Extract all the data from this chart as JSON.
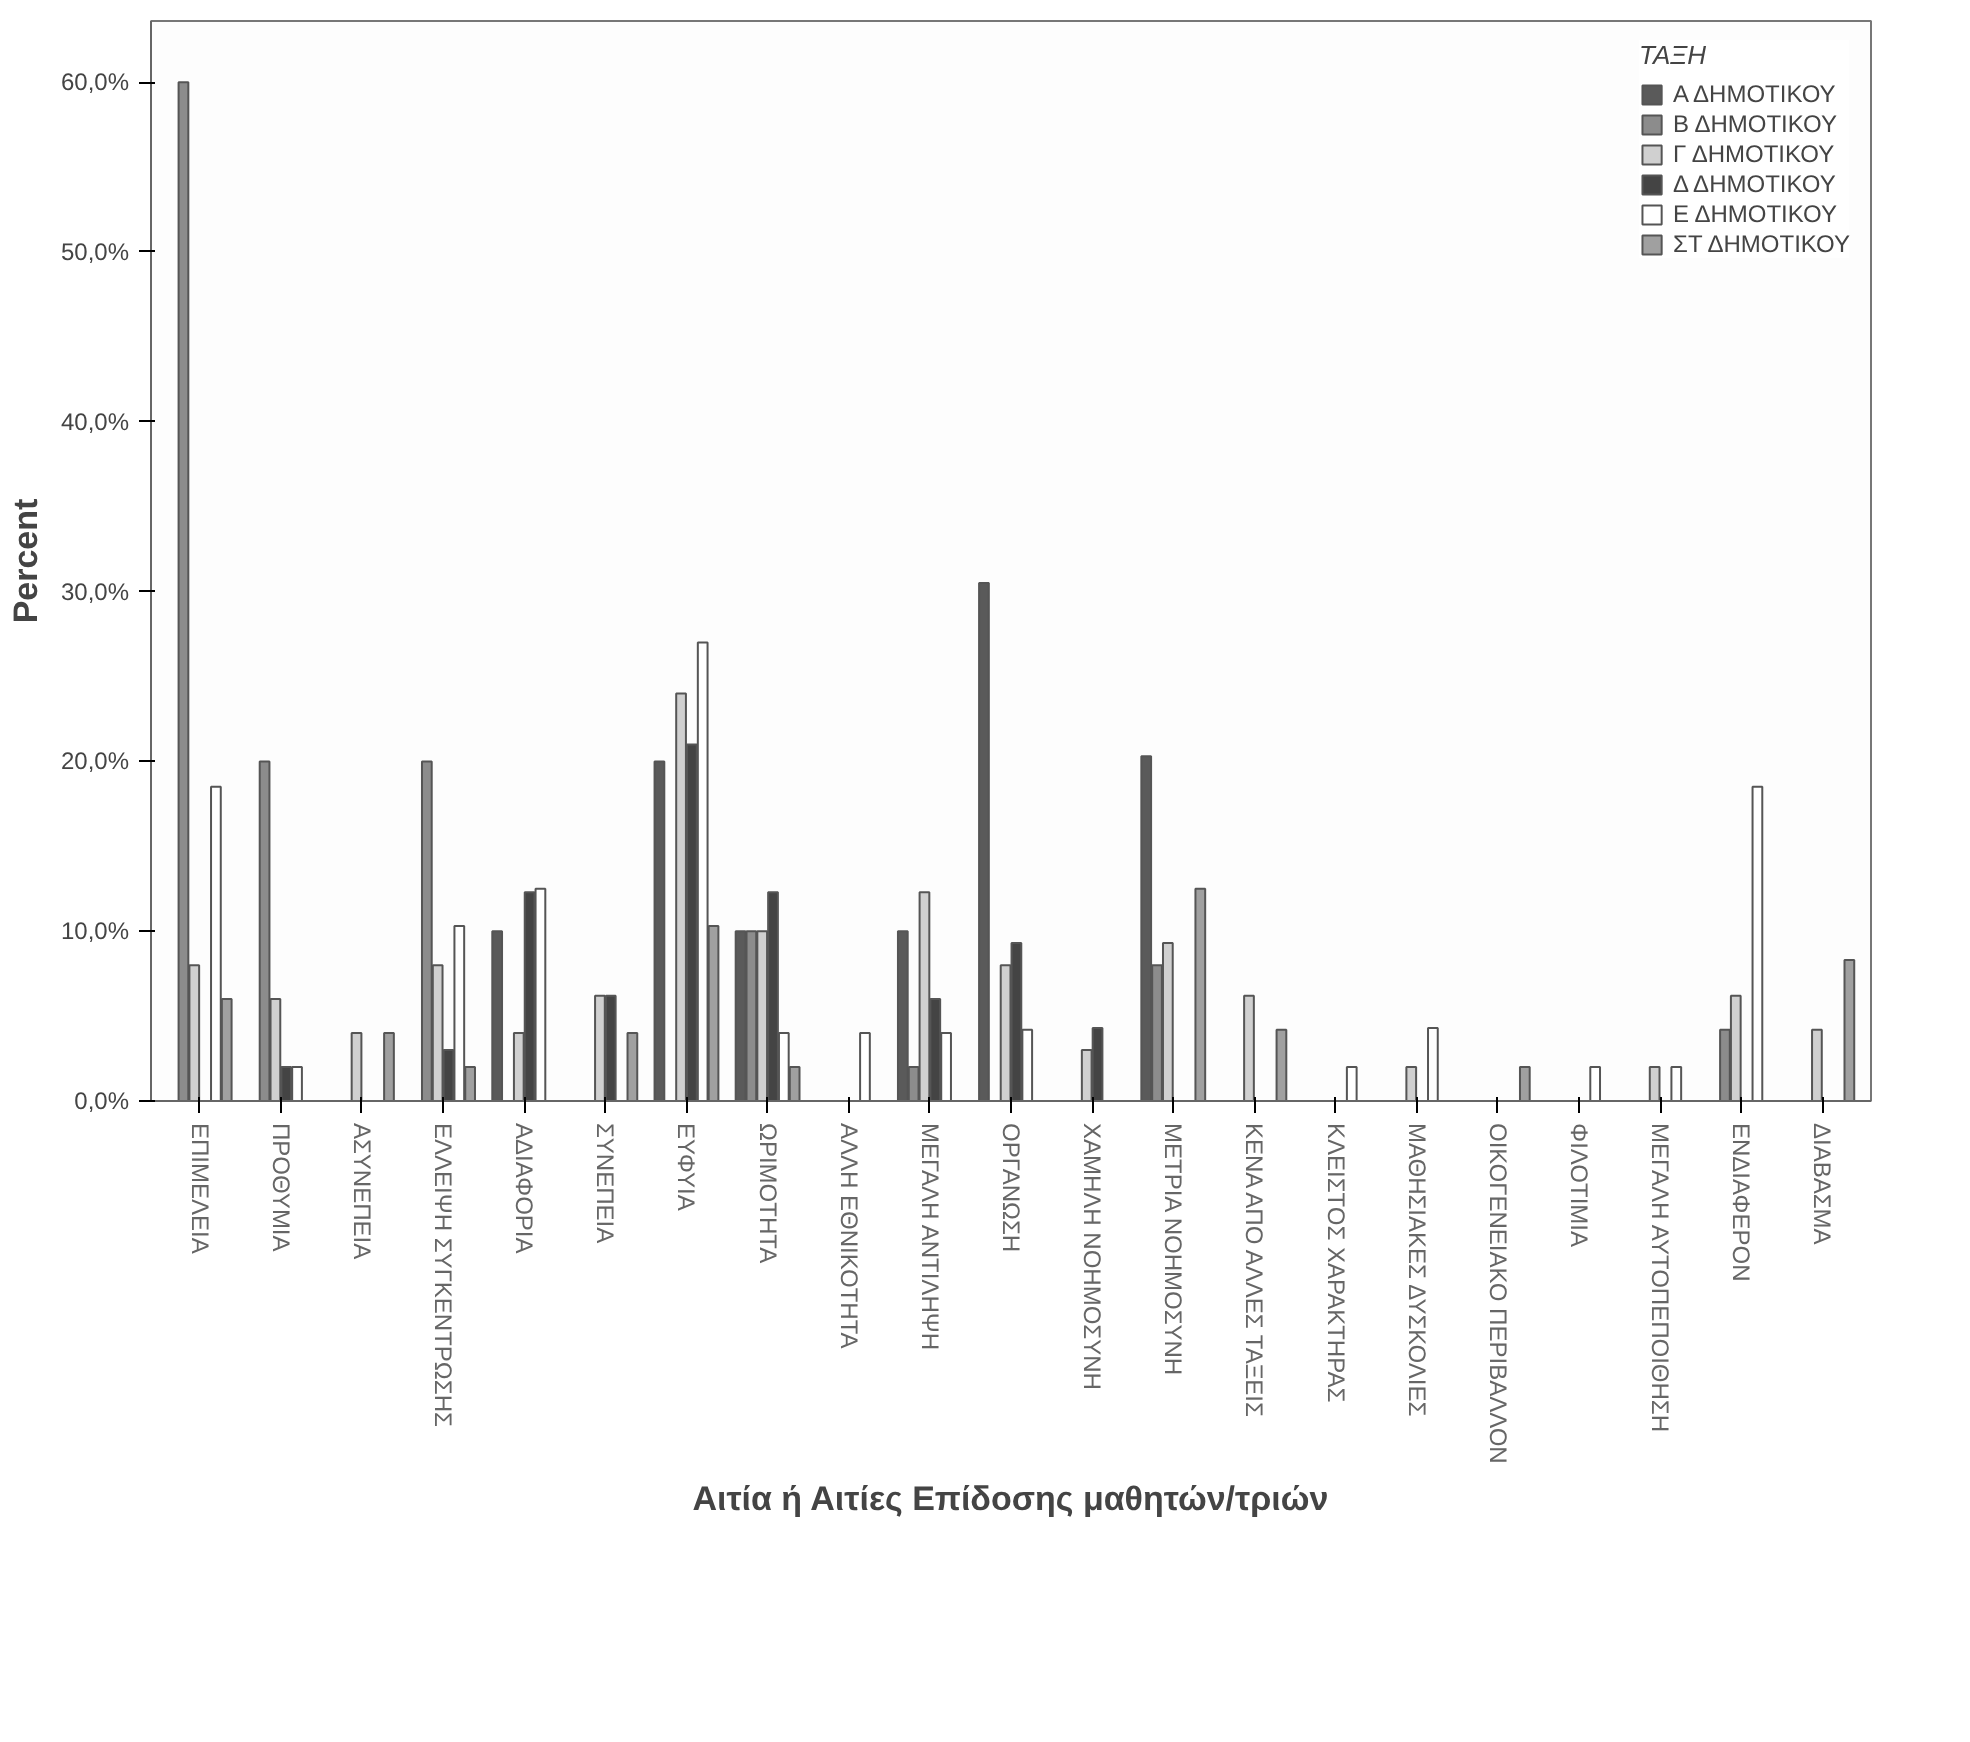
{
  "chart_data": {
    "type": "bar",
    "xlabel": "Αιτία ή Αιτίες Επίδοσης μαθητών/τριών",
    "ylabel": "Percent",
    "legend_title": "ΤΑΞΗ",
    "legend": "top right",
    "grid": false,
    "categories": [
      "ΕΠΙΜΕΛΕΙΑ",
      "ΠΡΟΘΥΜΙΑ",
      "ΑΣΥΝΕΠΕΙΑ",
      "ΕΛΛΕΙΨΗ ΣΥΓΚΕΝΤΡΩΣΗΣ",
      "ΑΔΙΑΦΟΡΙΑ",
      "ΣΥΝΕΠΕΙΑ",
      "ΕΥΦΥΙΑ",
      "ΩΡΙΜΟΤΗΤΑ",
      "ΑΛΛΗ ΕΘΝΙΚΟΤΗΤΑ",
      "ΜΕΓΑΛΗ ΑΝΤΙΛΗΨΗ",
      "ΟΡΓΑΝΩΣΗ",
      "ΧΑΜΗΛΗ ΝΟΗΜΟΣΥΝΗ",
      "ΜΕΤΡΙΑ ΝΟΗΜΟΣΥΝΗ",
      "ΚΕΝΑ ΑΠΟ ΑΛΛΕΣ ΤΑΞΕΙΣ",
      "ΚΛΕΙΣΤΟΣ ΧΑΡΑΚΤΗΡΑΣ",
      "ΜΑΘΗΣΙΑΚΕΣ ΔΥΣΚΟΛΙΕΣ",
      "ΟΙΚΟΓΕΝΕΙΑΚΟ ΠΕΡΙΒΑΛΛΟΝ",
      "ΦΙΛΟΤΙΜΙΑ",
      "ΜΕΓΑΛΗ ΑΥΤΟΠΕΠΟΙΘΗΣΗ",
      "ΕΝΔΙΑΦΕΡΟΝ",
      "ΔΙΑΒΑΣΜΑ"
    ],
    "ylim": [
      0,
      63.6
    ],
    "yticks": [
      {
        "value": 0,
        "label": "0,0%"
      },
      {
        "value": 10,
        "label": "10,0%"
      },
      {
        "value": 20,
        "label": "20,0%"
      },
      {
        "value": 30,
        "label": "30,0%"
      },
      {
        "value": 40,
        "label": "40,0%"
      },
      {
        "value": 50,
        "label": "50,0%"
      },
      {
        "value": 60,
        "label": "60,0%"
      }
    ],
    "series": [
      {
        "name": "Α ΔΗΜΟΤΙΚΟΥ",
        "color": "#5a5a5a",
        "values": [
          null,
          null,
          null,
          null,
          10,
          null,
          20,
          10,
          null,
          10,
          30.5,
          null,
          20.3,
          null,
          null,
          null,
          null,
          null,
          null,
          null,
          null
        ]
      },
      {
        "name": "Β ΔΗΜΟΤΙΚΟΥ",
        "color": "#8c8c8c",
        "values": [
          60,
          20,
          null,
          20,
          null,
          null,
          null,
          10,
          null,
          2,
          null,
          null,
          8,
          null,
          null,
          null,
          null,
          null,
          null,
          4.2,
          null
        ]
      },
      {
        "name": "Γ ΔΗΜΟΤΙΚΟΥ",
        "color": "#d0d0d0",
        "values": [
          8,
          6,
          4,
          8,
          4,
          6.2,
          24,
          10,
          null,
          12.3,
          8,
          3,
          9.3,
          6.2,
          null,
          2,
          null,
          null,
          2,
          6.2,
          4.2
        ]
      },
      {
        "name": "Δ ΔΗΜΟΤΙΚΟΥ",
        "color": "#444444",
        "values": [
          null,
          2,
          null,
          3,
          12.3,
          6.2,
          21,
          12.3,
          null,
          6,
          9.3,
          4.3,
          null,
          null,
          null,
          null,
          null,
          null,
          null,
          null,
          null
        ]
      },
      {
        "name": "Ε ΔΗΜΟΤΙΚΟΥ",
        "color": "#ffffff",
        "values": [
          18.5,
          2,
          null,
          10.3,
          12.5,
          null,
          27,
          4,
          4,
          4,
          4.2,
          null,
          null,
          null,
          2,
          4.3,
          null,
          2,
          2,
          18.5,
          null
        ]
      },
      {
        "name": "ΣΤ ΔΗΜΟΤΙΚΟΥ",
        "color": "#a0a0a0",
        "values": [
          6,
          null,
          4,
          2,
          null,
          4,
          10.3,
          2,
          null,
          null,
          null,
          null,
          12.5,
          4.2,
          null,
          null,
          2,
          null,
          null,
          null,
          8.3
        ]
      }
    ]
  }
}
